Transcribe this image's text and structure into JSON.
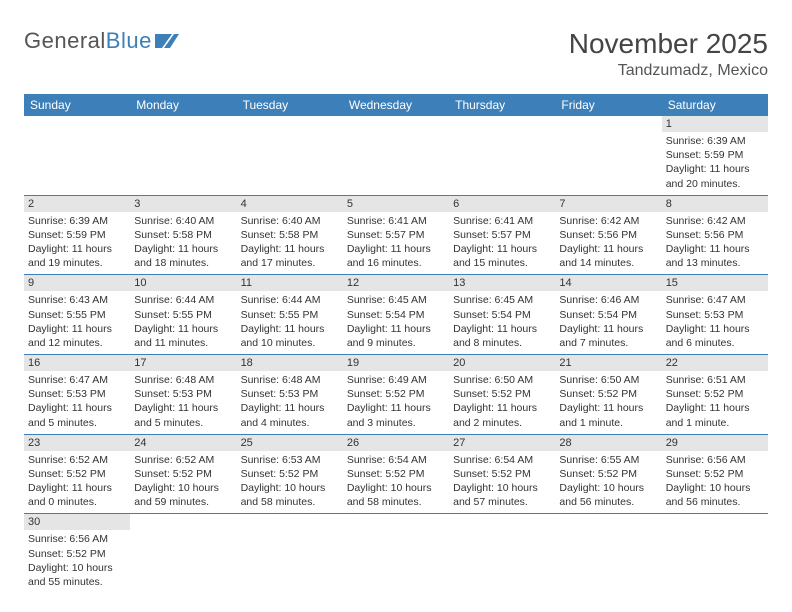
{
  "logo": {
    "text1": "General",
    "text2": "Blue"
  },
  "header": {
    "title": "November 2025",
    "location": "Tandzumadz, Mexico"
  },
  "colors": {
    "accent": "#3d7fb8",
    "headerBg": "#e5e5e5",
    "text": "#333333"
  },
  "weekdays": [
    "Sunday",
    "Monday",
    "Tuesday",
    "Wednesday",
    "Thursday",
    "Friday",
    "Saturday"
  ],
  "startOffset": 6,
  "days": [
    {
      "n": 1,
      "sunrise": "6:39 AM",
      "sunset": "5:59 PM",
      "daylight": "11 hours and 20 minutes."
    },
    {
      "n": 2,
      "sunrise": "6:39 AM",
      "sunset": "5:59 PM",
      "daylight": "11 hours and 19 minutes."
    },
    {
      "n": 3,
      "sunrise": "6:40 AM",
      "sunset": "5:58 PM",
      "daylight": "11 hours and 18 minutes."
    },
    {
      "n": 4,
      "sunrise": "6:40 AM",
      "sunset": "5:58 PM",
      "daylight": "11 hours and 17 minutes."
    },
    {
      "n": 5,
      "sunrise": "6:41 AM",
      "sunset": "5:57 PM",
      "daylight": "11 hours and 16 minutes."
    },
    {
      "n": 6,
      "sunrise": "6:41 AM",
      "sunset": "5:57 PM",
      "daylight": "11 hours and 15 minutes."
    },
    {
      "n": 7,
      "sunrise": "6:42 AM",
      "sunset": "5:56 PM",
      "daylight": "11 hours and 14 minutes."
    },
    {
      "n": 8,
      "sunrise": "6:42 AM",
      "sunset": "5:56 PM",
      "daylight": "11 hours and 13 minutes."
    },
    {
      "n": 9,
      "sunrise": "6:43 AM",
      "sunset": "5:55 PM",
      "daylight": "11 hours and 12 minutes."
    },
    {
      "n": 10,
      "sunrise": "6:44 AM",
      "sunset": "5:55 PM",
      "daylight": "11 hours and 11 minutes."
    },
    {
      "n": 11,
      "sunrise": "6:44 AM",
      "sunset": "5:55 PM",
      "daylight": "11 hours and 10 minutes."
    },
    {
      "n": 12,
      "sunrise": "6:45 AM",
      "sunset": "5:54 PM",
      "daylight": "11 hours and 9 minutes."
    },
    {
      "n": 13,
      "sunrise": "6:45 AM",
      "sunset": "5:54 PM",
      "daylight": "11 hours and 8 minutes."
    },
    {
      "n": 14,
      "sunrise": "6:46 AM",
      "sunset": "5:54 PM",
      "daylight": "11 hours and 7 minutes."
    },
    {
      "n": 15,
      "sunrise": "6:47 AM",
      "sunset": "5:53 PM",
      "daylight": "11 hours and 6 minutes."
    },
    {
      "n": 16,
      "sunrise": "6:47 AM",
      "sunset": "5:53 PM",
      "daylight": "11 hours and 5 minutes."
    },
    {
      "n": 17,
      "sunrise": "6:48 AM",
      "sunset": "5:53 PM",
      "daylight": "11 hours and 5 minutes."
    },
    {
      "n": 18,
      "sunrise": "6:48 AM",
      "sunset": "5:53 PM",
      "daylight": "11 hours and 4 minutes."
    },
    {
      "n": 19,
      "sunrise": "6:49 AM",
      "sunset": "5:52 PM",
      "daylight": "11 hours and 3 minutes."
    },
    {
      "n": 20,
      "sunrise": "6:50 AM",
      "sunset": "5:52 PM",
      "daylight": "11 hours and 2 minutes."
    },
    {
      "n": 21,
      "sunrise": "6:50 AM",
      "sunset": "5:52 PM",
      "daylight": "11 hours and 1 minute."
    },
    {
      "n": 22,
      "sunrise": "6:51 AM",
      "sunset": "5:52 PM",
      "daylight": "11 hours and 1 minute."
    },
    {
      "n": 23,
      "sunrise": "6:52 AM",
      "sunset": "5:52 PM",
      "daylight": "11 hours and 0 minutes."
    },
    {
      "n": 24,
      "sunrise": "6:52 AM",
      "sunset": "5:52 PM",
      "daylight": "10 hours and 59 minutes."
    },
    {
      "n": 25,
      "sunrise": "6:53 AM",
      "sunset": "5:52 PM",
      "daylight": "10 hours and 58 minutes."
    },
    {
      "n": 26,
      "sunrise": "6:54 AM",
      "sunset": "5:52 PM",
      "daylight": "10 hours and 58 minutes."
    },
    {
      "n": 27,
      "sunrise": "6:54 AM",
      "sunset": "5:52 PM",
      "daylight": "10 hours and 57 minutes."
    },
    {
      "n": 28,
      "sunrise": "6:55 AM",
      "sunset": "5:52 PM",
      "daylight": "10 hours and 56 minutes."
    },
    {
      "n": 29,
      "sunrise": "6:56 AM",
      "sunset": "5:52 PM",
      "daylight": "10 hours and 56 minutes."
    },
    {
      "n": 30,
      "sunrise": "6:56 AM",
      "sunset": "5:52 PM",
      "daylight": "10 hours and 55 minutes."
    }
  ],
  "labels": {
    "sunrise": "Sunrise:",
    "sunset": "Sunset:",
    "daylight": "Daylight:"
  }
}
